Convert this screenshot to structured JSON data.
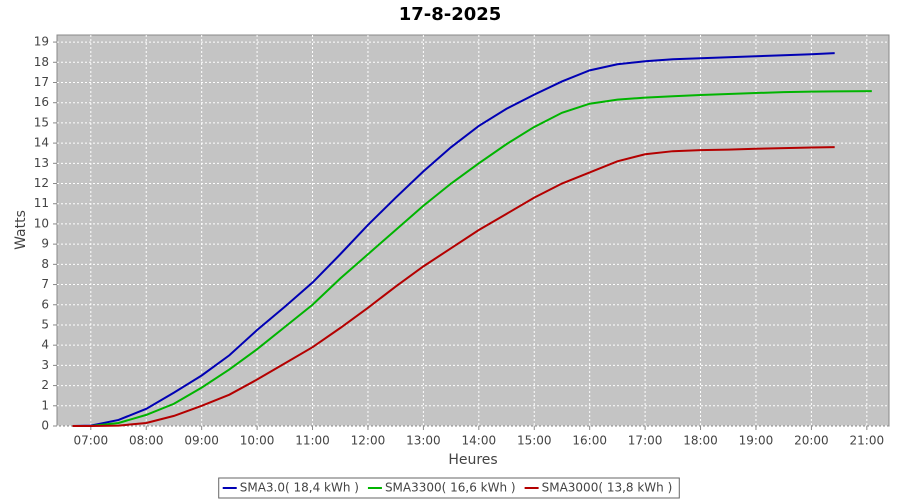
{
  "chart_data": {
    "type": "line",
    "title": "17-8-2025",
    "x_label": "Heures",
    "y_label": "Watts",
    "x": [
      6.67,
      7,
      7.5,
      8,
      8.5,
      9,
      9.5,
      10,
      10.5,
      11,
      11.5,
      12,
      12.5,
      13,
      13.5,
      14,
      14.5,
      15,
      15.5,
      16,
      16.5,
      17,
      17.5,
      18,
      18.5,
      19,
      19.5,
      20,
      20.42,
      21.09
    ],
    "series": [
      {
        "name": "SMA3.0( 18,4 kWh )",
        "color": "#0000b4",
        "values": [
          0,
          0.02,
          0.3,
          0.85,
          1.65,
          2.5,
          3.5,
          4.75,
          5.9,
          7.1,
          8.5,
          9.95,
          11.3,
          12.6,
          13.8,
          14.85,
          15.7,
          16.4,
          17.05,
          17.6,
          17.9,
          18.05,
          18.15,
          18.2,
          18.25,
          18.3,
          18.35,
          18.4,
          18.45,
          null
        ]
      },
      {
        "name": "SMA3300( 16,6 kWh )",
        "color": "#00b400",
        "values": [
          0,
          0,
          0.15,
          0.55,
          1.1,
          1.9,
          2.8,
          3.8,
          4.9,
          6.0,
          7.3,
          8.5,
          9.7,
          10.9,
          12.0,
          13.0,
          13.95,
          14.8,
          15.5,
          15.95,
          16.15,
          16.25,
          16.32,
          16.38,
          16.43,
          16.48,
          16.52,
          16.55,
          16.56,
          16.57
        ]
      },
      {
        "name": "SMA3000( 13,8 kWh )",
        "color": "#b40000",
        "values": [
          0,
          0,
          0.02,
          0.15,
          0.5,
          1.0,
          1.55,
          2.3,
          3.1,
          3.9,
          4.85,
          5.85,
          6.9,
          7.9,
          8.8,
          9.7,
          10.5,
          11.3,
          12.0,
          12.55,
          13.1,
          13.45,
          13.6,
          13.65,
          13.68,
          13.72,
          13.75,
          13.78,
          13.8,
          null
        ]
      }
    ],
    "xlim": [
      6.39,
      21.4
    ],
    "xticks": [
      {
        "value": 7,
        "label": "07:00"
      },
      {
        "value": 8,
        "label": "08:00"
      },
      {
        "value": 9,
        "label": "09:00"
      },
      {
        "value": 10,
        "label": "10:00"
      },
      {
        "value": 11,
        "label": "11:00"
      },
      {
        "value": 12,
        "label": "12:00"
      },
      {
        "value": 13,
        "label": "13:00"
      },
      {
        "value": 14,
        "label": "14:00"
      },
      {
        "value": 15,
        "label": "15:00"
      },
      {
        "value": 16,
        "label": "16:00"
      },
      {
        "value": 17,
        "label": "17:00"
      },
      {
        "value": 18,
        "label": "18:00"
      },
      {
        "value": 19,
        "label": "19:00"
      },
      {
        "value": 20,
        "label": "20:00"
      },
      {
        "value": 21,
        "label": "21:00"
      }
    ],
    "ylim": [
      0,
      19.35
    ],
    "yticks": [
      0,
      1,
      2,
      3,
      4,
      5,
      6,
      7,
      8,
      9,
      10,
      11,
      12,
      13,
      14,
      15,
      16,
      17,
      18,
      19
    ],
    "grid": true,
    "legend": "bottom"
  }
}
